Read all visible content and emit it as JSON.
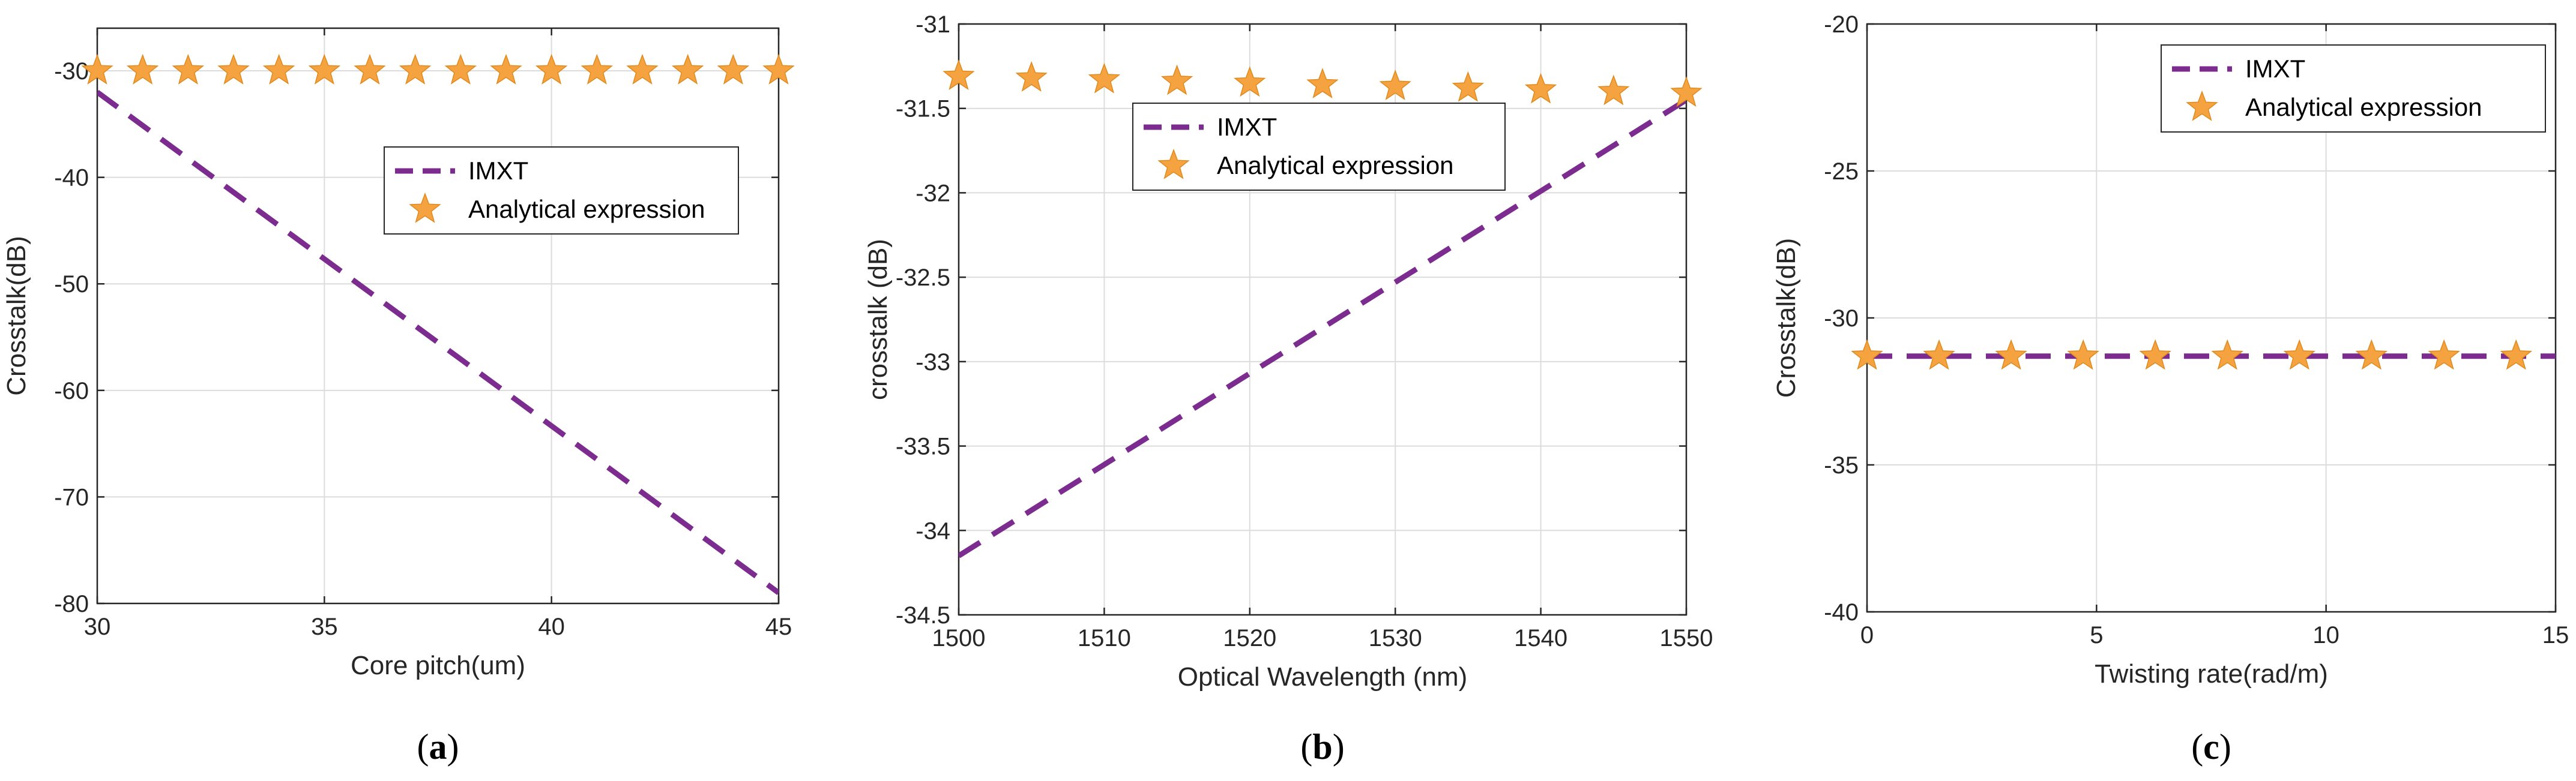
{
  "colors": {
    "imxt": "#7B2C8E",
    "analytical": "#F4A340",
    "grid": "#DCDCDC",
    "axis": "#262626"
  },
  "chart_data": [
    {
      "type": "line",
      "panel_label": "a",
      "xlabel": "Core pitch(um)",
      "ylabel": "Crosstalk(dB)",
      "xlim": [
        30,
        45
      ],
      "ylim": [
        -80,
        -26
      ],
      "xticks": [
        30,
        35,
        40,
        45
      ],
      "yticks": [
        -80,
        -70,
        -60,
        -50,
        -40,
        -30
      ],
      "legend": {
        "position": "center",
        "entries": [
          "IMXT",
          "Analytical expression"
        ]
      },
      "series": [
        {
          "name": "IMXT",
          "style": "dashed-line",
          "x": [
            30,
            45
          ],
          "y": [
            -32,
            -79
          ]
        },
        {
          "name": "Analytical expression",
          "style": "star-markers",
          "x": [
            30,
            31,
            32,
            33,
            34,
            35,
            36,
            37,
            38,
            39,
            40,
            41,
            42,
            43,
            44,
            45
          ],
          "y": [
            -30,
            -30,
            -30,
            -30,
            -30,
            -30,
            -30,
            -30,
            -30,
            -30,
            -30,
            -30,
            -30,
            -30,
            -30,
            -30
          ]
        }
      ]
    },
    {
      "type": "line",
      "panel_label": "b",
      "xlabel": "Optical Wavelength (nm)",
      "ylabel": "crosstalk (dB)",
      "xlim": [
        1500,
        1550
      ],
      "ylim": [
        -34.5,
        -31
      ],
      "xticks": [
        1500,
        1510,
        1520,
        1530,
        1540,
        1550
      ],
      "yticks": [
        -34.5,
        -34,
        -33.5,
        -33,
        -32.5,
        -32,
        -31.5,
        -31
      ],
      "legend": {
        "position": "top-center",
        "entries": [
          "IMXT",
          "Analytical expression"
        ]
      },
      "series": [
        {
          "name": "IMXT",
          "style": "dashed-line",
          "x": [
            1500,
            1550
          ],
          "y": [
            -34.15,
            -31.45
          ]
        },
        {
          "name": "Analytical expression",
          "style": "star-markers",
          "x": [
            1500,
            1505,
            1510,
            1515,
            1520,
            1525,
            1530,
            1535,
            1540,
            1545,
            1550
          ],
          "y": [
            -31.31,
            -31.32,
            -31.33,
            -31.34,
            -31.35,
            -31.36,
            -31.37,
            -31.38,
            -31.39,
            -31.4,
            -31.41
          ]
        }
      ]
    },
    {
      "type": "line",
      "panel_label": "c",
      "xlabel": "Twisting rate(rad/m)",
      "ylabel": "Crosstalk(dB)",
      "xlim": [
        0,
        15
      ],
      "ylim": [
        -40,
        -20
      ],
      "xticks": [
        0,
        5,
        10,
        15
      ],
      "yticks": [
        -40,
        -35,
        -30,
        -25,
        -20
      ],
      "legend": {
        "position": "top-right",
        "entries": [
          "IMXT",
          "Analytical expression"
        ]
      },
      "series": [
        {
          "name": "IMXT",
          "style": "dashed-line",
          "x": [
            0,
            15
          ],
          "y": [
            -31.3,
            -31.3
          ]
        },
        {
          "name": "Analytical expression",
          "style": "star-markers",
          "x": [
            0,
            1.57,
            3.14,
            4.71,
            6.28,
            7.85,
            9.42,
            10.99,
            12.57,
            14.14
          ],
          "y": [
            -31.3,
            -31.3,
            -31.3,
            -31.3,
            -31.3,
            -31.3,
            -31.3,
            -31.3,
            -31.3,
            -31.3
          ]
        }
      ]
    }
  ]
}
